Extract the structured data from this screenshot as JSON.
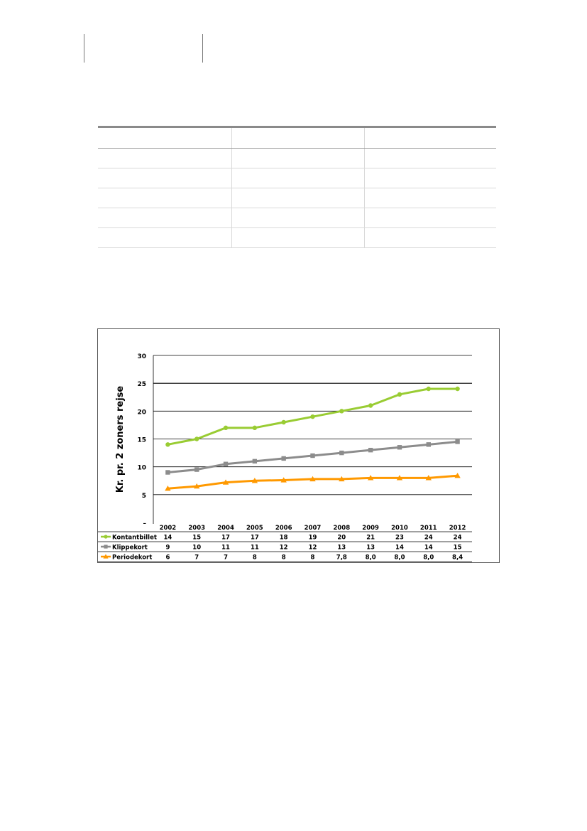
{
  "chart_data": {
    "type": "line",
    "categories": [
      "2002",
      "2003",
      "2004",
      "2005",
      "2006",
      "2007",
      "2008",
      "2009",
      "2010",
      "2011",
      "2012"
    ],
    "ylabel": "Kr. pr. 2 zoners rejse",
    "ylim": [
      0,
      30
    ],
    "yticks": [
      "–",
      "5",
      "10",
      "15",
      "20",
      "25",
      "30"
    ],
    "grid": true,
    "series": [
      {
        "name": "Kontantbillet",
        "color": "#99cc33",
        "marker": "circle",
        "values": [
          14,
          15,
          17,
          17,
          18,
          19,
          20,
          21,
          23,
          24,
          24
        ],
        "labels": [
          "14",
          "15",
          "17",
          "17",
          "18",
          "19",
          "20",
          "21",
          "23",
          "24",
          "24"
        ]
      },
      {
        "name": "Klippekort",
        "color": "#8c8c8c",
        "marker": "square",
        "values": [
          9,
          9.5,
          10.5,
          11,
          11.5,
          12,
          12.5,
          13,
          13.5,
          14,
          14.5
        ],
        "labels": [
          "9",
          "10",
          "11",
          "11",
          "12",
          "12",
          "13",
          "13",
          "14",
          "14",
          "15"
        ]
      },
      {
        "name": "Periodekort",
        "color": "#ff9900",
        "marker": "triangle",
        "values": [
          6.1,
          6.5,
          7.2,
          7.5,
          7.6,
          7.8,
          7.8,
          8.0,
          8.0,
          8.0,
          8.4
        ],
        "labels": [
          "6",
          "7",
          "7",
          "8",
          "8",
          "8",
          "7,8",
          "8,0",
          "8,0",
          "8,0",
          "8,4"
        ]
      }
    ]
  }
}
